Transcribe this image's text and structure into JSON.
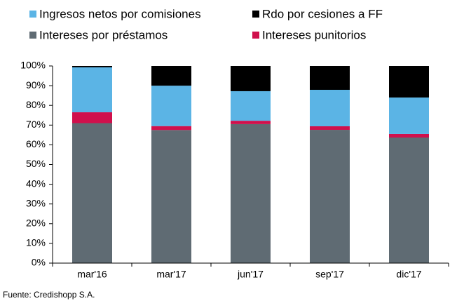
{
  "chart_data": {
    "type": "stacked_bar",
    "categories": [
      "mar'16",
      "mar'17",
      "jun'17",
      "sep'17",
      "dic'17"
    ],
    "series": [
      {
        "name": "Intereses por préstamos",
        "color": "#5f6b73",
        "values": [
          71,
          67.5,
          70.5,
          67.6,
          63.7
        ]
      },
      {
        "name": "Intereses punitorios",
        "color": "#d0104c",
        "values": [
          5.5,
          2,
          1.7,
          1.8,
          1.8
        ]
      },
      {
        "name": "Ingresos netos por comisiones",
        "color": "#5bb4e5",
        "values": [
          22.8,
          20.5,
          15,
          18.5,
          18.5
        ]
      },
      {
        "name": "Rdo por cesiones  a FF",
        "color": "#000000",
        "values": [
          0.7,
          10,
          12.8,
          12.1,
          16
        ]
      }
    ],
    "ylim": [
      0,
      100
    ],
    "yticks": [
      {
        "value": 0,
        "label": "0%"
      },
      {
        "value": 10,
        "label": "10%"
      },
      {
        "value": 20,
        "label": "20%"
      },
      {
        "value": 30,
        "label": "30%"
      },
      {
        "value": 40,
        "label": "40%"
      },
      {
        "value": 50,
        "label": "50%"
      },
      {
        "value": 60,
        "label": "60%"
      },
      {
        "value": 70,
        "label": "70%"
      },
      {
        "value": 80,
        "label": "80%"
      },
      {
        "value": 90,
        "label": "90%"
      },
      {
        "value": 100,
        "label": "100%"
      }
    ],
    "source": "Fuente: Credishopp S.A."
  }
}
